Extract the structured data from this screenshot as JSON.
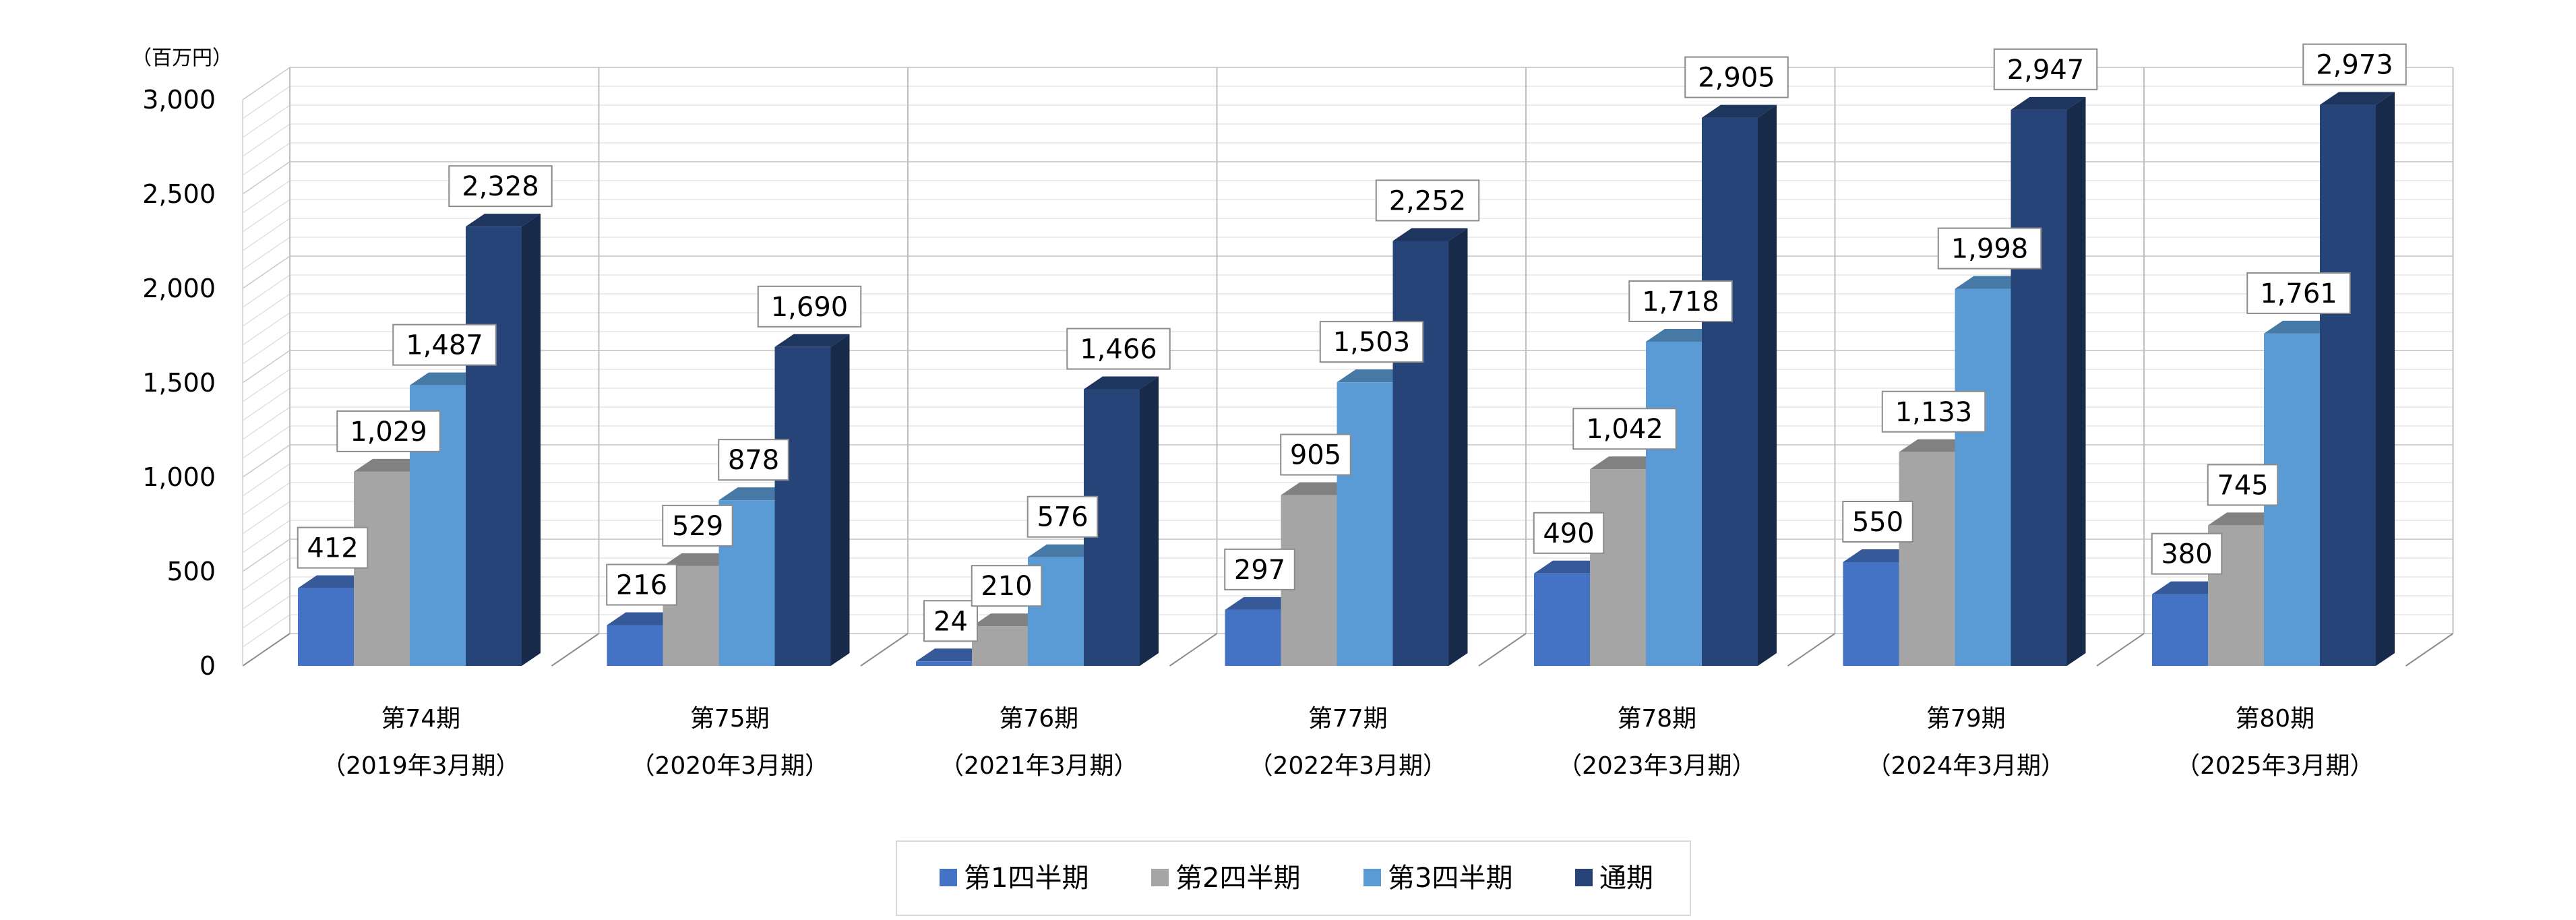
{
  "chart_data": {
    "type": "bar",
    "unit_label": "（百万円）",
    "categories": [
      [
        "第74期",
        "（2019年3月期）"
      ],
      [
        "第75期",
        "（2020年3月期）"
      ],
      [
        "第76期",
        "（2021年3月期）"
      ],
      [
        "第77期",
        "（2022年3月期）"
      ],
      [
        "第78期",
        "（2023年3月期）"
      ],
      [
        "第79期",
        "（2024年3月期）"
      ],
      [
        "第80期",
        "（2025年3月期）"
      ]
    ],
    "series": [
      {
        "name": "第1四半期",
        "color": "#4472C4",
        "values": [
          412,
          216,
          24,
          297,
          490,
          550,
          380
        ]
      },
      {
        "name": "第2四半期",
        "color": "#A5A5A5",
        "values": [
          1029,
          529,
          210,
          905,
          1042,
          1133,
          745
        ]
      },
      {
        "name": "第3四半期",
        "color": "#5B9BD5",
        "values": [
          1487,
          878,
          576,
          1503,
          1718,
          1998,
          1761
        ]
      },
      {
        "name": "通期",
        "color": "#264478",
        "values": [
          2328,
          1690,
          1466,
          2252,
          2905,
          2947,
          2973
        ]
      }
    ],
    "ylim": [
      0,
      3000
    ],
    "yticks": [
      0,
      500,
      1000,
      1500,
      2000,
      2500,
      3000
    ],
    "ytick_labels": [
      "0",
      "500",
      "1,000",
      "1,500",
      "2,000",
      "2,500",
      "3,000"
    ],
    "grid": true,
    "legend_position": "bottom"
  }
}
